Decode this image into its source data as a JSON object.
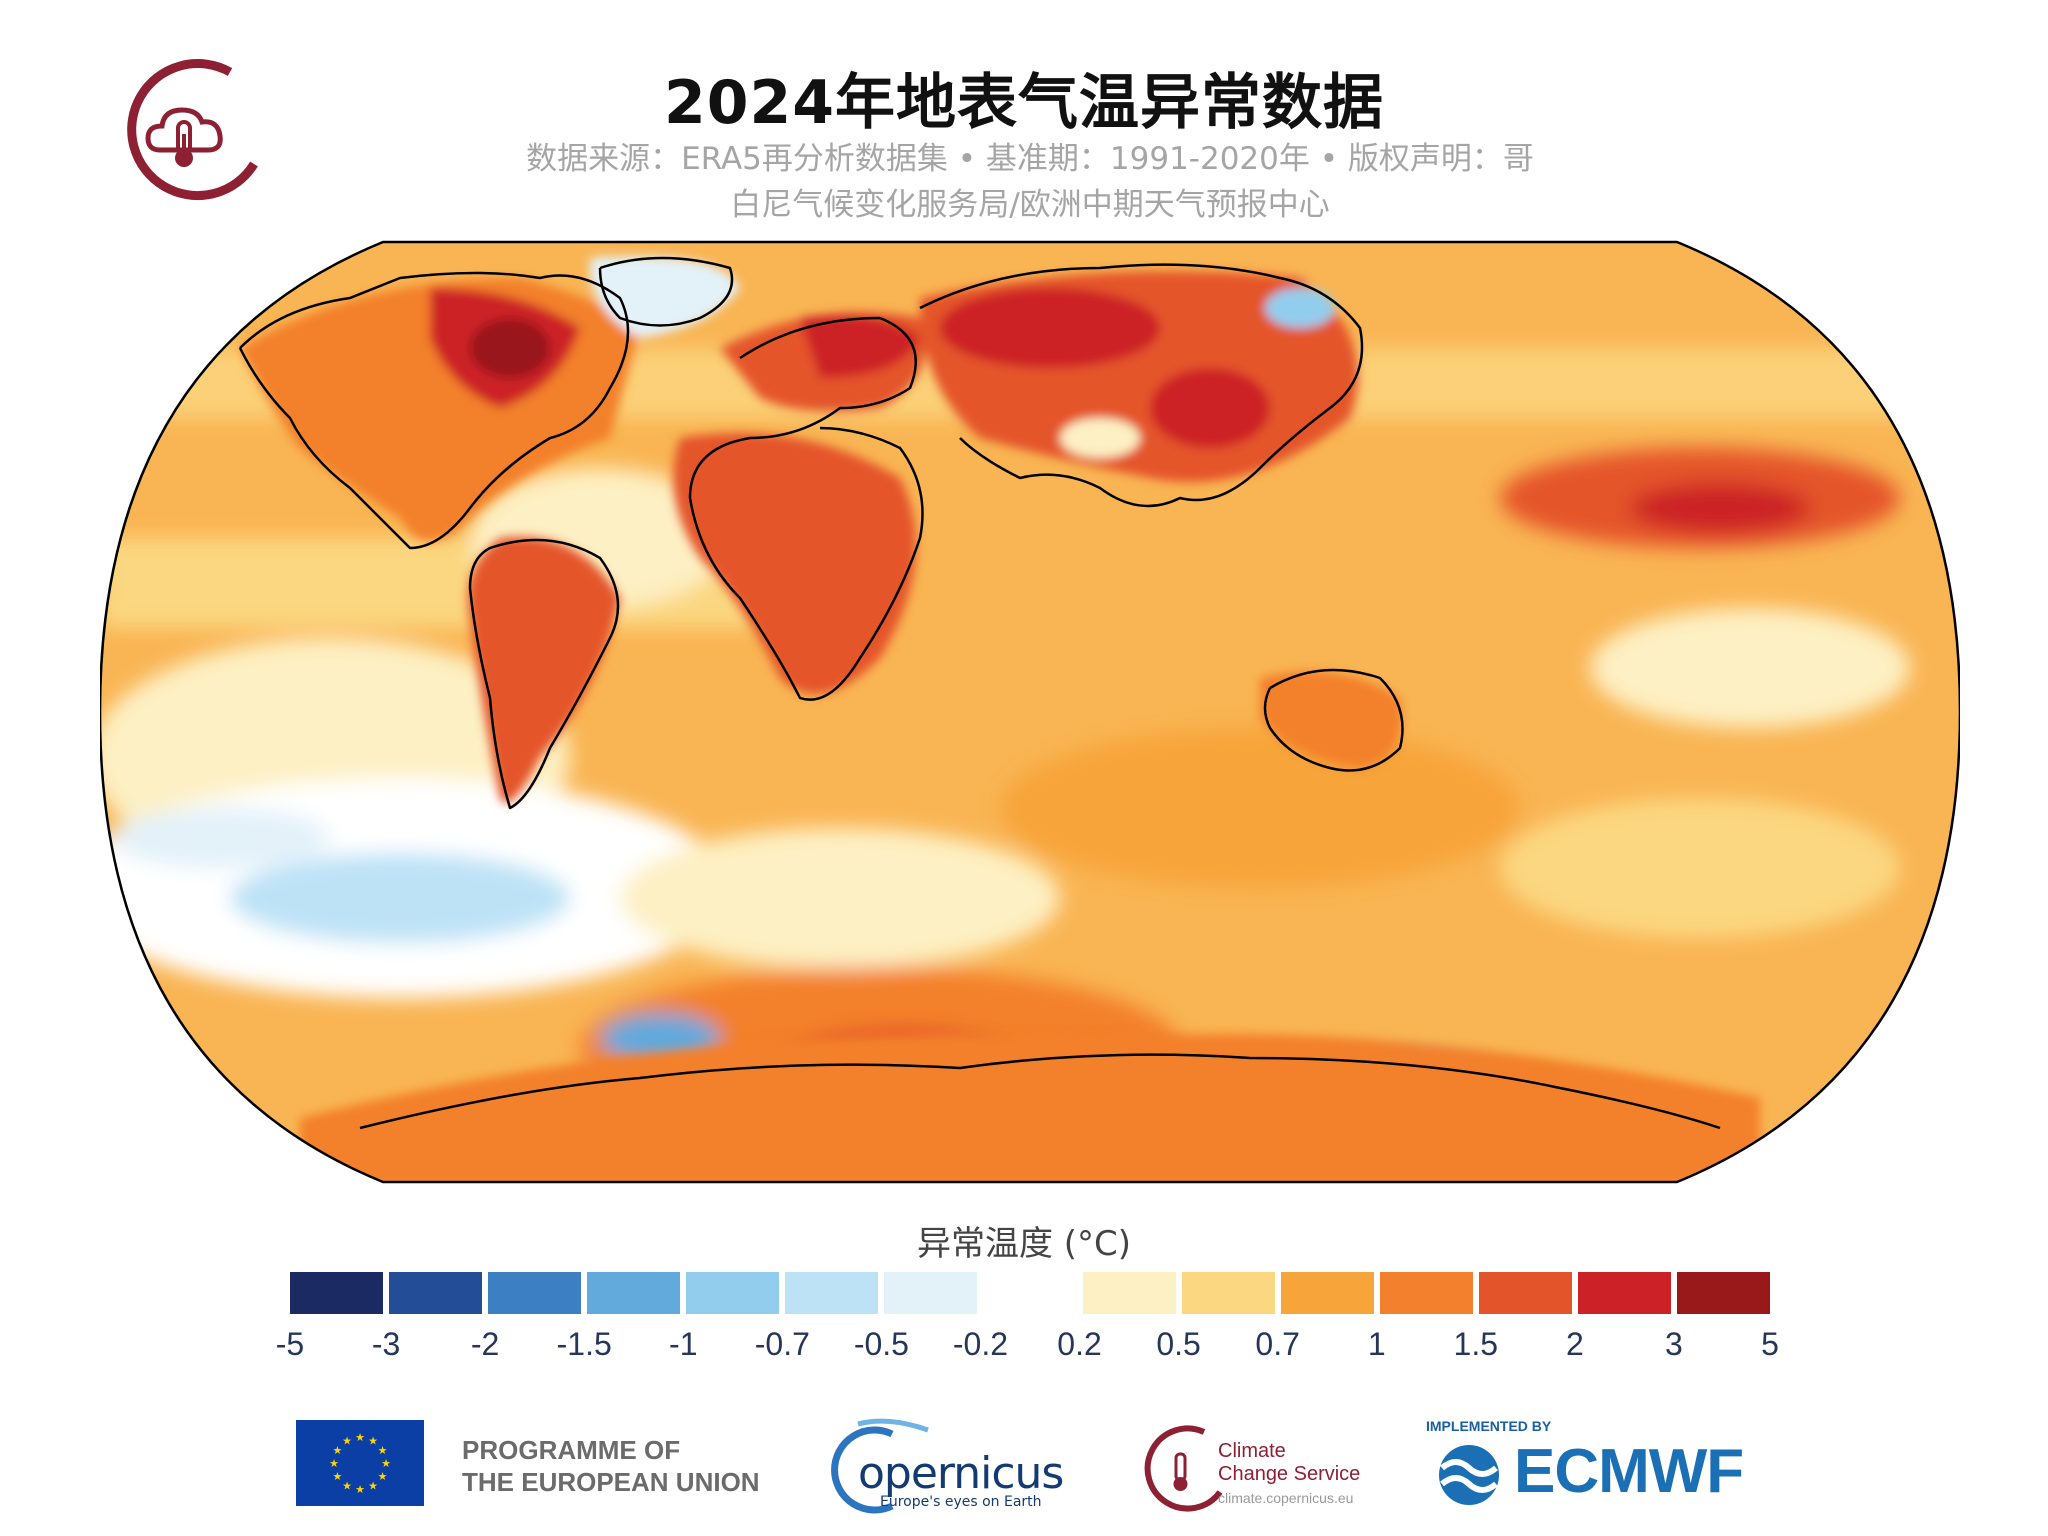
{
  "header": {
    "title": "2024年地表气温异常数据",
    "subtitle_line1": "数据来源：ERA5再分析数据集 • 基准期：1991-2020年 • 版权声明：哥",
    "subtitle_line2": "白尼气候变化服务局/欧洲中期天气预报中心"
  },
  "legend": {
    "title": "异常温度 (°C)",
    "ticks": [
      "-5",
      "-3",
      "-2",
      "-1.5",
      "-1",
      "-0.7",
      "-0.5",
      "-0.2",
      "0.2",
      "0.5",
      "0.7",
      "1",
      "1.5",
      "2",
      "3",
      "5"
    ],
    "colors": [
      "#1c2a63",
      "#244d98",
      "#3c7fc3",
      "#62a9dc",
      "#93cdee",
      "#bde2f6",
      "#e3f1f9",
      "#ffffff",
      "#fdf0c4",
      "#fbd781",
      "#f7a43a",
      "#f3802c",
      "#e4542a",
      "#cc2227",
      "#99191b"
    ]
  },
  "map": {
    "projection": "Robinson",
    "colors": {
      "ocean_base": "#f9b554",
      "warm": "#f3802c",
      "hot": "#e4542a",
      "very_hot": "#cc2227",
      "extreme": "#99191b",
      "mild": "#fbd781",
      "near_zero": "#fdf0c4",
      "neutral": "#ffffff",
      "cool": "#bde2f6",
      "cold": "#62a9dc",
      "coast": "#000000"
    }
  },
  "footer": {
    "eu_line1": "PROGRAMME OF",
    "eu_line2": "THE EUROPEAN UNION",
    "copernicus_word": "opernicus",
    "copernicus_tagline": "Europe's eyes on Earth",
    "c3s_line1": "Climate",
    "c3s_line2": "Change Service",
    "c3s_url": "climate.copernicus.eu",
    "implemented_by": "IMPLEMENTED BY",
    "ecmwf": "ECMWF"
  }
}
